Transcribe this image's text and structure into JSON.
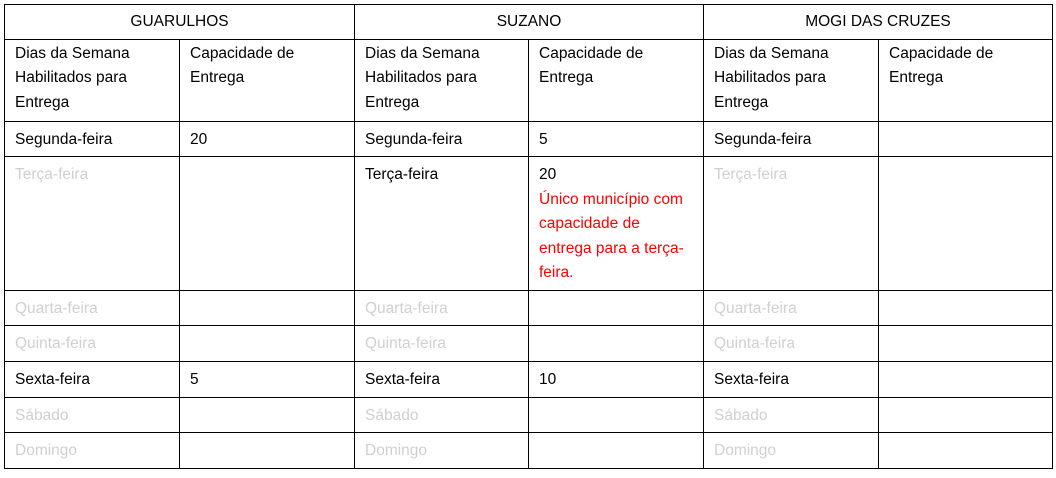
{
  "headers": {
    "day": "Dias da Semana Habilitados para Entrega",
    "capacity": "Capacidade de Entrega"
  },
  "colors": {
    "disabled": "#d0d0d0",
    "note": "#ff0000"
  },
  "cities": [
    {
      "name": "GUARULHOS",
      "days": [
        {
          "day": "Segunda-feira",
          "enabled": true,
          "capacity": "20"
        },
        {
          "day": "Terça-feira",
          "enabled": false,
          "capacity": ""
        },
        {
          "day": "Quarta-feira",
          "enabled": false,
          "capacity": ""
        },
        {
          "day": "Quinta-feira",
          "enabled": false,
          "capacity": ""
        },
        {
          "day": "Sexta-feira",
          "enabled": true,
          "capacity": "5"
        },
        {
          "day": "Sábado",
          "enabled": false,
          "capacity": ""
        },
        {
          "day": "Domingo",
          "enabled": false,
          "capacity": ""
        }
      ]
    },
    {
      "name": "SUZANO",
      "days": [
        {
          "day": "Segunda-feira",
          "enabled": true,
          "capacity": "5"
        },
        {
          "day": "Terça-feira",
          "enabled": true,
          "capacity": "20",
          "note": "Único município com capacidade de entrega para a terça-feira."
        },
        {
          "day": "Quarta-feira",
          "enabled": false,
          "capacity": ""
        },
        {
          "day": "Quinta-feira",
          "enabled": false,
          "capacity": ""
        },
        {
          "day": "Sexta-feira",
          "enabled": true,
          "capacity": "10"
        },
        {
          "day": "Sábado",
          "enabled": false,
          "capacity": ""
        },
        {
          "day": "Domingo",
          "enabled": false,
          "capacity": ""
        }
      ]
    },
    {
      "name": "MOGI DAS CRUZES",
      "days": [
        {
          "day": "Segunda-feira",
          "enabled": true,
          "capacity": ""
        },
        {
          "day": "Terça-feira",
          "enabled": false,
          "capacity": ""
        },
        {
          "day": "Quarta-feira",
          "enabled": false,
          "capacity": ""
        },
        {
          "day": "Quinta-feira",
          "enabled": false,
          "capacity": ""
        },
        {
          "day": "Sexta-feira",
          "enabled": true,
          "capacity": ""
        },
        {
          "day": "Sábado",
          "enabled": false,
          "capacity": ""
        },
        {
          "day": "Domingo",
          "enabled": false,
          "capacity": ""
        }
      ]
    }
  ]
}
